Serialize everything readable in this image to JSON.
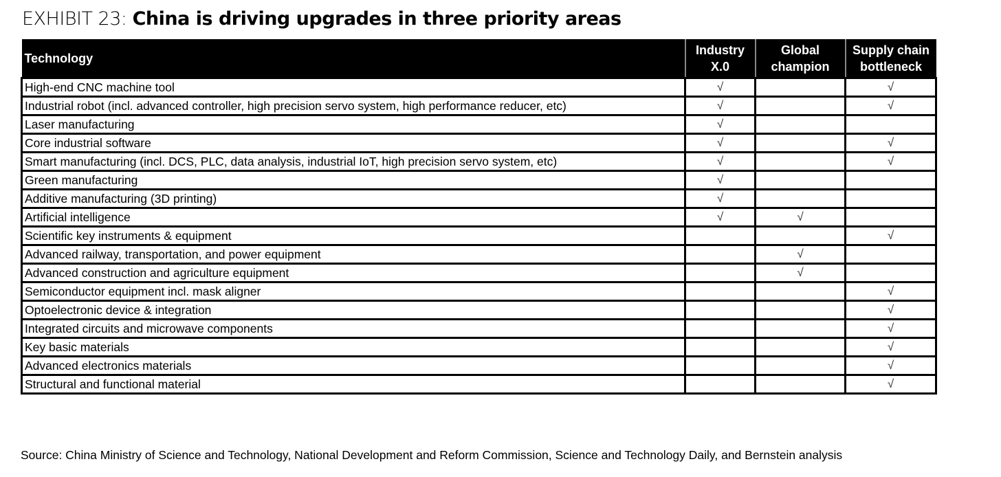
{
  "title": {
    "prefix": "EXHIBIT 23:",
    "main": "China is driving upgrades in three priority areas"
  },
  "table": {
    "headers": [
      "Technology",
      "Industry X.0",
      "Global champion",
      "Supply chain bottleneck"
    ],
    "check_mark": "√",
    "rows": [
      {
        "technology": "High-end CNC machine tool",
        "industry": "√",
        "global": "",
        "supply": "√"
      },
      {
        "technology": "Industrial robot (incl. advanced controller, high precision servo system, high performance reducer, etc)",
        "industry": "√",
        "global": "",
        "supply": "√"
      },
      {
        "technology": "Laser manufacturing",
        "industry": "√",
        "global": "",
        "supply": ""
      },
      {
        "technology": "Core industrial software",
        "industry": "√",
        "global": "",
        "supply": "√"
      },
      {
        "technology": "Smart manufacturing (incl. DCS, PLC, data analysis, industrial IoT, high precision servo system, etc)",
        "industry": "√",
        "global": "",
        "supply": "√"
      },
      {
        "technology": "Green manufacturing",
        "industry": "√",
        "global": "",
        "supply": ""
      },
      {
        "technology": "Additive manufacturing (3D printing)",
        "industry": "√",
        "global": "",
        "supply": ""
      },
      {
        "technology": "Artificial intelligence",
        "industry": "√",
        "global": "√",
        "supply": ""
      },
      {
        "technology": "Scientific key instruments & equipment",
        "industry": "",
        "global": "",
        "supply": "√"
      },
      {
        "technology": "Advanced railway, transportation, and power equipment",
        "industry": "",
        "global": "√",
        "supply": ""
      },
      {
        "technology": "Advanced construction and agriculture equipment",
        "industry": "",
        "global": "√",
        "supply": ""
      },
      {
        "technology": "Semiconductor equipment incl. mask aligner",
        "industry": "",
        "global": "",
        "supply": "√"
      },
      {
        "technology": "Optoelectronic device & integration",
        "industry": "",
        "global": "",
        "supply": "√"
      },
      {
        "technology": "Integrated circuits and microwave components",
        "industry": "",
        "global": "",
        "supply": "√"
      },
      {
        "technology": "Key basic materials",
        "industry": "",
        "global": "",
        "supply": "√"
      },
      {
        "technology": "Advanced electronics materials",
        "industry": "",
        "global": "",
        "supply": "√"
      },
      {
        "technology": "Structural and functional material",
        "industry": "",
        "global": "",
        "supply": "√"
      }
    ]
  },
  "source": "Source: China Ministry of Science and Technology, National Development and Reform Commission, Science and Technology Daily, and Bernstein analysis"
}
